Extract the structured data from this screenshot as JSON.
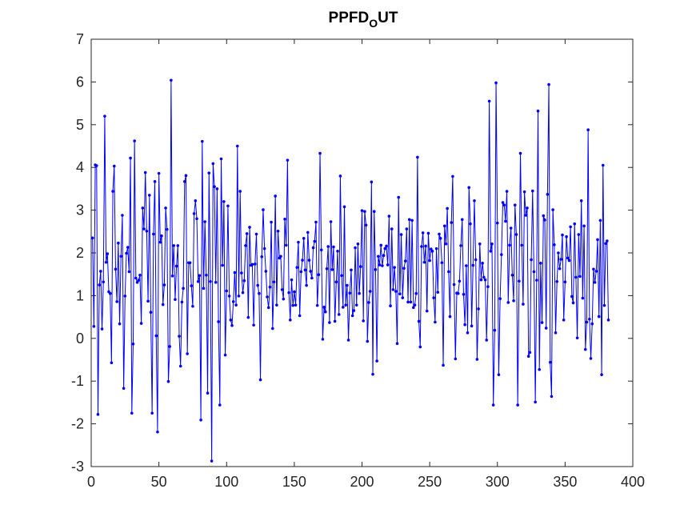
{
  "chart_data": {
    "type": "line",
    "title": {
      "base": "PPFD",
      "subscript": "O",
      "rest": "UT"
    },
    "xlabel": "",
    "ylabel": "",
    "xlim": [
      0,
      400
    ],
    "ylim": [
      -3,
      7
    ],
    "xticks": [
      0,
      50,
      100,
      150,
      200,
      250,
      300,
      350,
      400
    ],
    "yticks": [
      -3,
      -2,
      -1,
      0,
      1,
      2,
      3,
      4,
      5,
      6,
      7
    ],
    "grid": false,
    "legend": "none",
    "marker": "point",
    "line_color": "#0000ff",
    "x_start": 1,
    "x_step": 1,
    "series": [
      {
        "values": [
          2.35,
          0.28,
          4.06,
          4.04,
          -1.78,
          1.25,
          1.57,
          0.22,
          1.32,
          5.2,
          1.78,
          1.98,
          1.09,
          1.05,
          -0.57,
          3.44,
          4.03,
          1.62,
          0.86,
          2.23,
          0.34,
          1.92,
          2.88,
          -1.17,
          0.99,
          1.99,
          2.13,
          1.56,
          4.22,
          -1.75,
          -0.13,
          4.62,
          1.41,
          1.31,
          1.36,
          1.48,
          0.35,
          3.05,
          2.56,
          3.88,
          2.51,
          0.87,
          3.35,
          0.61,
          -1.75,
          2.44,
          3.67,
          0.06,
          -2.19,
          3.86,
          2.25,
          2.4,
          0.79,
          1.25,
          3.05,
          2.55,
          -1.01,
          -0.19,
          6.04,
          1.46,
          2.17,
          0.91,
          1.69,
          2.17,
          0.05,
          -0.65,
          0.85,
          1.17,
          3.67,
          3.81,
          -0.36,
          1.77,
          1.77,
          1.23,
          0.75,
          2.92,
          3.22,
          2.8,
          1.33,
          1.47,
          -1.91,
          4.61,
          1.17,
          2.73,
          1.48,
          -1.28,
          3.87,
          1.33,
          -2.87,
          4.09,
          3.55,
          1.31,
          3.5,
          0.39,
          -1.56,
          4.2,
          1.71,
          3.2,
          -0.39,
          1.11,
          3.1,
          0.99,
          0.43,
          0.3,
          0.86,
          1.54,
          0.78,
          4.5,
          0.99,
          3.44,
          1.53,
          1.07,
          1.35,
          2.17,
          2.45,
          0.49,
          2.6,
          1.71,
          1.73,
          0.31,
          1.74,
          2.44,
          1.24,
          1.05,
          -0.97,
          1.91,
          3.01,
          2.1,
          1.57,
          0.97,
          0.72,
          1.2,
          2.72,
          0.23,
          1.32,
          3.33,
          0.78,
          2.51,
          1.88,
          1.92,
          1.14,
          0.92,
          2.79,
          2.18,
          4.17,
          1.07,
          0.43,
          1.37,
          0.77,
          1.09,
          0.78,
          1.66,
          2.25,
          0.53,
          1.56,
          1.83,
          2.34,
          1.6,
          1.24,
          2.48,
          1.83,
          1.57,
          1.41,
          2.12,
          2.27,
          2.72,
          0.77,
          1.49,
          4.33,
          2.07,
          -0.02,
          0.73,
          0.62,
          1.63,
          2.15,
          0.37,
          2.73,
          1.61,
          2.14,
          0.4,
          1.32,
          2.04,
          0.56,
          3.8,
          1.47,
          0.73,
          3.08,
          0.78,
          1.24,
          -0.04,
          1.06,
          1.6,
          0.53,
          0.65,
          2.12,
          0.78,
          2.21,
          1.05,
          1.68,
          2.99,
          0.41,
          2.97,
          2.65,
          -0.07,
          0.84,
          1.1,
          3.66,
          -0.84,
          2.97,
          1.61,
          -0.53,
          1.92,
          1.72,
          2.18,
          1.7,
          1.94,
          2.1,
          2.16,
          1.72,
          2.86,
          0.76,
          2.56,
          1.14,
          1.66,
          1.1,
          -0.12,
          3.3,
          1.04,
          2.43,
          0.95,
          1.64,
          1.81,
          2.56,
          0.85,
          2.78,
          0.85,
          2.76,
          0.72,
          0.78,
          1.05,
          4.24,
          0.4,
          -0.2,
          2.15,
          2.47,
          1.78,
          2.16,
          0.64,
          2.46,
          1.82,
          2.09,
          2.04,
          0.95,
          0.38,
          2.1,
          1.08,
          2.44,
          2.34,
          1.77,
          -0.63,
          2.63,
          2.21,
          3.04,
          1.56,
          0.51,
          2.71,
          3.79,
          1.26,
          -0.48,
          1.06,
          1.05,
          1.34,
          2.17,
          2.78,
          1.03,
          0.32,
          1.7,
          0.13,
          3.53,
          2.68,
          0.29,
          1.71,
          3.22,
          1.84,
          -0.49,
          0.69,
          2.21,
          1.37,
          1.76,
          1.43,
          1.37,
          -0.04,
          1.21,
          5.55,
          2.04,
          2.21,
          -1.56,
          0.19,
          5.98,
          2.7,
          -0.85,
          0.93,
          1.96,
          3.18,
          3.12,
          2.74,
          3.44,
          0.84,
          2.18,
          2.58,
          1.48,
          0.88,
          3.12,
          2.43,
          -1.56,
          1.34,
          4.33,
          2.18,
          0.8,
          3.43,
          2.88,
          3.05,
          -0.42,
          -0.33,
          1.84,
          3.45,
          1.56,
          -1.49,
          1.36,
          5.32,
          -0.73,
          1.76,
          0.37,
          2.87,
          2.77,
          0.24,
          3.37,
          5.94,
          -0.56,
          -1.36,
          3.01,
          2.19,
          0.13,
          1.33,
          2.0,
          1.63,
          1.85,
          2.42,
          0.43,
          1.32,
          2.38,
          1.88,
          1.82,
          2.61,
          0.98,
          0.83,
          2.68,
          1.43,
          0.01,
          2.43,
          1.45,
          3.22,
          0.94,
          2.63,
          -0.26,
          0.38,
          4.88,
          0.45,
          -0.47,
          0.34,
          1.62,
          1.31,
          1.57,
          2.31,
          0.51,
          2.76,
          -0.85,
          4.05,
          0.77,
          2.22,
          2.28,
          0.43
        ]
      }
    ]
  }
}
